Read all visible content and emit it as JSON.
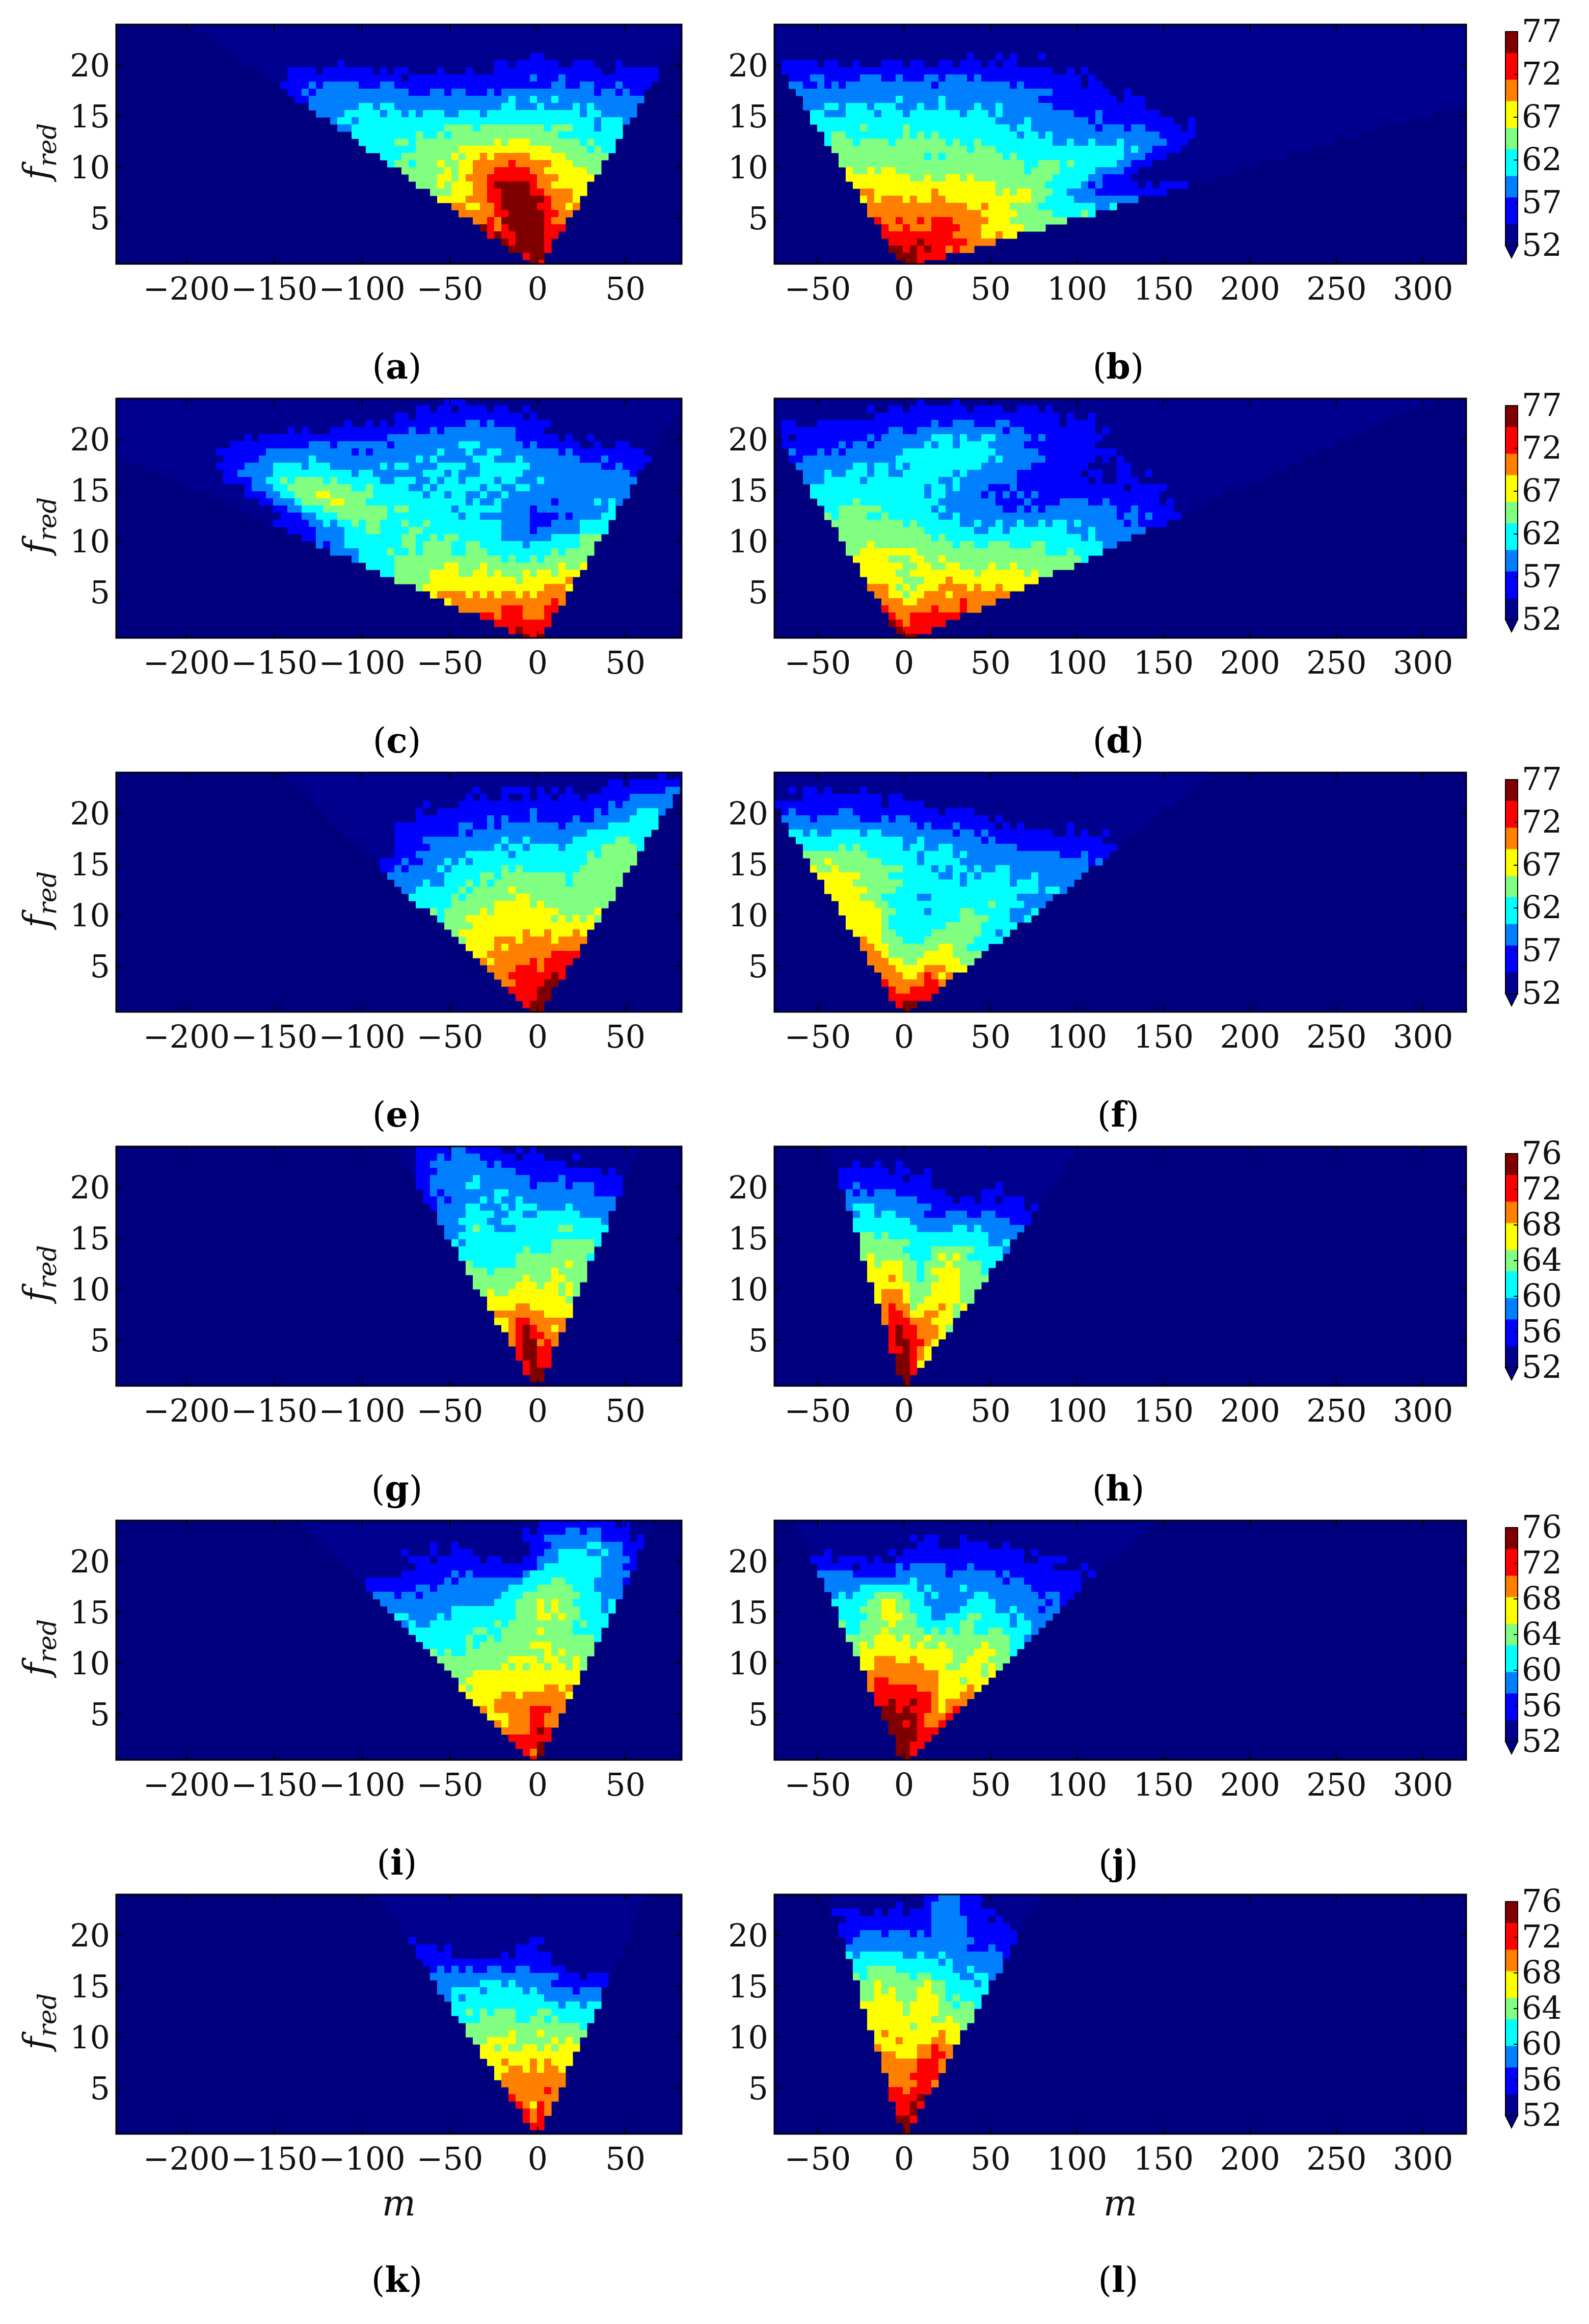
{
  "colormap": [
    "#00008f",
    "#0000ff",
    "#0080ff",
    "#00ffff",
    "#80ff80",
    "#ffff00",
    "#ff8000",
    "#ff0000",
    "#800000"
  ],
  "background_color": "#00007f",
  "y_axis_label": "f",
  "y_axis_label_sub": "red",
  "x_axis_label": "m",
  "chart_data": [
    {
      "panel": "a",
      "type": "heatmap",
      "ylabel": "f_red",
      "x_ticks": [
        -200,
        -150,
        -100,
        -50,
        0,
        50
      ],
      "y_ticks": [
        5,
        10,
        15,
        20
      ],
      "xlim": [
        -240,
        82
      ],
      "ylim": [
        0.5,
        24
      ],
      "apex_m": 0,
      "left_slope": 8.2,
      "right_slope": 3.6,
      "level_range": [
        52,
        77
      ],
      "colorbar_ticks": [],
      "caption": "(a)"
    },
    {
      "panel": "b",
      "type": "heatmap",
      "x_ticks": [
        -50,
        0,
        50,
        100,
        150,
        200,
        250,
        300
      ],
      "y_ticks": [
        5,
        10,
        15,
        20
      ],
      "xlim": [
        -75,
        325
      ],
      "ylim": [
        0.5,
        24
      ],
      "apex_m": 0,
      "left_slope": 3.6,
      "right_slope": 20.0,
      "level_range": [
        52,
        77
      ],
      "colorbar_ticks": [
        77,
        72,
        67,
        62,
        57,
        52
      ],
      "caption": "(b)"
    },
    {
      "panel": "c",
      "type": "heatmap",
      "ylabel": "f_red",
      "x_ticks": [
        -200,
        -150,
        -100,
        -50,
        0,
        50
      ],
      "y_ticks": [
        5,
        10,
        15,
        20
      ],
      "xlim": [
        -240,
        82
      ],
      "ylim": [
        0.5,
        24
      ],
      "apex_m": 0,
      "left_slope": 13.0,
      "right_slope": 3.5,
      "level_range": [
        52,
        77
      ],
      "colorbar_ticks": [],
      "caption": "(c)"
    },
    {
      "panel": "d",
      "type": "heatmap",
      "x_ticks": [
        -50,
        0,
        50,
        100,
        150,
        200,
        250,
        300
      ],
      "y_ticks": [
        5,
        10,
        15,
        20
      ],
      "xlim": [
        -75,
        325
      ],
      "ylim": [
        0.5,
        24
      ],
      "apex_m": 0,
      "left_slope": 3.6,
      "right_slope": 12.8,
      "level_range": [
        52,
        77
      ],
      "colorbar_ticks": [
        77,
        72,
        67,
        62,
        57,
        52
      ],
      "caption": "(d)"
    },
    {
      "panel": "e",
      "type": "heatmap",
      "ylabel": "f_red",
      "x_ticks": [
        -200,
        -150,
        -100,
        -50,
        0,
        50
      ],
      "y_ticks": [
        5,
        10,
        15,
        20
      ],
      "xlim": [
        -240,
        82
      ],
      "ylim": [
        0.5,
        24
      ],
      "apex_m": 0,
      "left_slope": 6.1,
      "right_slope": 3.6,
      "level_range": [
        52,
        77
      ],
      "colorbar_ticks": [],
      "caption": "(e)"
    },
    {
      "panel": "f",
      "type": "heatmap",
      "x_ticks": [
        -50,
        0,
        50,
        100,
        150,
        200,
        250,
        300
      ],
      "y_ticks": [
        5,
        10,
        15,
        20
      ],
      "xlim": [
        -75,
        325
      ],
      "ylim": [
        0.5,
        24
      ],
      "apex_m": 0,
      "left_slope": 3.6,
      "right_slope": 7.4,
      "level_range": [
        52,
        77
      ],
      "colorbar_ticks": [
        77,
        72,
        67,
        62,
        57,
        52
      ],
      "caption": "(f)"
    },
    {
      "panel": "g",
      "type": "heatmap",
      "ylabel": "f_red",
      "x_ticks": [
        -200,
        -150,
        -100,
        -50,
        0,
        50
      ],
      "y_ticks": [
        5,
        10,
        15,
        20
      ],
      "xlim": [
        -240,
        82
      ],
      "ylim": [
        0.5,
        24
      ],
      "apex_m": 0,
      "left_slope": 3.4,
      "right_slope": 2.4,
      "level_range": [
        52,
        76
      ],
      "colorbar_ticks": [
        76,
        72,
        68,
        64,
        60,
        56,
        52
      ],
      "caption": "(g)"
    },
    {
      "panel": "h",
      "type": "heatmap",
      "x_ticks": [
        -50,
        0,
        50,
        100,
        150,
        200,
        250,
        300
      ],
      "y_ticks": [
        5,
        10,
        15,
        20
      ],
      "xlim": [
        -75,
        325
      ],
      "ylim": [
        0.5,
        24
      ],
      "apex_m": 0,
      "left_slope": 1.8,
      "right_slope": 4.3,
      "level_range": [
        52,
        76
      ],
      "colorbar_ticks": [
        76,
        72,
        68,
        64,
        60,
        56,
        52
      ],
      "caption": "(h)"
    },
    {
      "panel": "i",
      "type": "heatmap",
      "ylabel": "f_red",
      "x_ticks": [
        -200,
        -150,
        -100,
        -50,
        0,
        50
      ],
      "y_ticks": [
        5,
        10,
        15,
        20
      ],
      "xlim": [
        -240,
        82
      ],
      "ylim": [
        0.5,
        24
      ],
      "apex_m": 0,
      "left_slope": 5.7,
      "right_slope": 2.8,
      "level_range": [
        52,
        76
      ],
      "colorbar_ticks": [],
      "caption": "(i)"
    },
    {
      "panel": "j",
      "type": "heatmap",
      "x_ticks": [
        -50,
        0,
        50,
        100,
        150,
        200,
        250,
        300
      ],
      "y_ticks": [
        5,
        10,
        15,
        20
      ],
      "xlim": [
        -75,
        325
      ],
      "ylim": [
        0.5,
        24
      ],
      "apex_m": 0,
      "left_slope": 2.6,
      "right_slope": 6.0,
      "level_range": [
        52,
        76
      ],
      "colorbar_ticks": [
        76,
        72,
        68,
        64,
        60,
        56,
        52
      ],
      "caption": "(j)"
    },
    {
      "panel": "k",
      "type": "heatmap",
      "ylabel": "f_red",
      "xlabel": "m",
      "x_ticks": [
        -200,
        -150,
        -100,
        -50,
        0,
        50
      ],
      "y_ticks": [
        5,
        10,
        15,
        20
      ],
      "xlim": [
        -240,
        82
      ],
      "ylim": [
        0.5,
        24
      ],
      "apex_m": 0,
      "left_slope": 3.8,
      "right_slope": 2.6,
      "level_range": [
        52,
        76
      ],
      "colorbar_ticks": [],
      "caption": "(k)"
    },
    {
      "panel": "l",
      "type": "heatmap",
      "xlabel": "m",
      "x_ticks": [
        -50,
        0,
        50,
        100,
        150,
        200,
        250,
        300
      ],
      "y_ticks": [
        5,
        10,
        15,
        20
      ],
      "xlim": [
        -75,
        325
      ],
      "ylim": [
        0.5,
        24
      ],
      "apex_m": 0,
      "left_slope": 1.8,
      "right_slope": 3.3,
      "level_range": [
        52,
        76
      ],
      "colorbar_ticks": [
        76,
        72,
        68,
        64,
        60,
        56,
        52
      ],
      "caption": "(l)"
    }
  ]
}
